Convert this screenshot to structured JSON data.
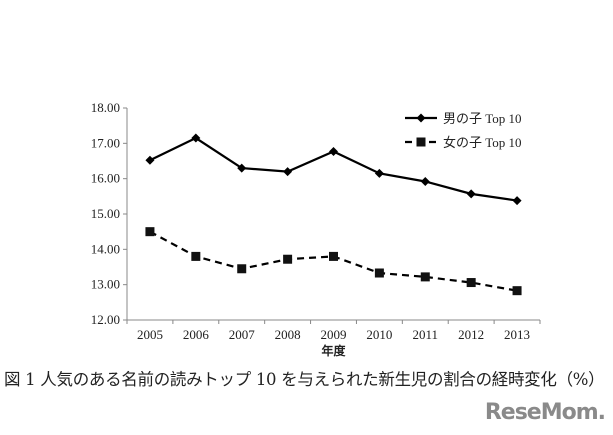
{
  "chart_data": {
    "type": "line",
    "title": "",
    "xlabel": "年度",
    "ylabel": "",
    "categories": [
      "2005",
      "2006",
      "2007",
      "2008",
      "2009",
      "2010",
      "2011",
      "2012",
      "2013"
    ],
    "ylim": [
      12,
      18
    ],
    "yticks": [
      "12.00",
      "13.00",
      "14.00",
      "15.00",
      "16.00",
      "17.00",
      "18.00"
    ],
    "grid": false,
    "legend_position": "top-right",
    "series": [
      {
        "name": "男の子 Top 10",
        "marker": "diamond",
        "line": "solid",
        "color": "#000000",
        "values": [
          16.52,
          17.15,
          16.3,
          16.2,
          16.77,
          16.15,
          15.92,
          15.57,
          15.38
        ]
      },
      {
        "name": "女の子 Top 10",
        "marker": "square",
        "line": "dashed",
        "color": "#000000",
        "values": [
          14.5,
          13.8,
          13.45,
          13.72,
          13.8,
          13.33,
          13.22,
          13.06,
          12.83
        ]
      }
    ]
  },
  "caption": "図 1 人気のある名前の読みトップ 10 を与えられた新生児の割合の経時変化（%）",
  "logo": "ReseMom"
}
